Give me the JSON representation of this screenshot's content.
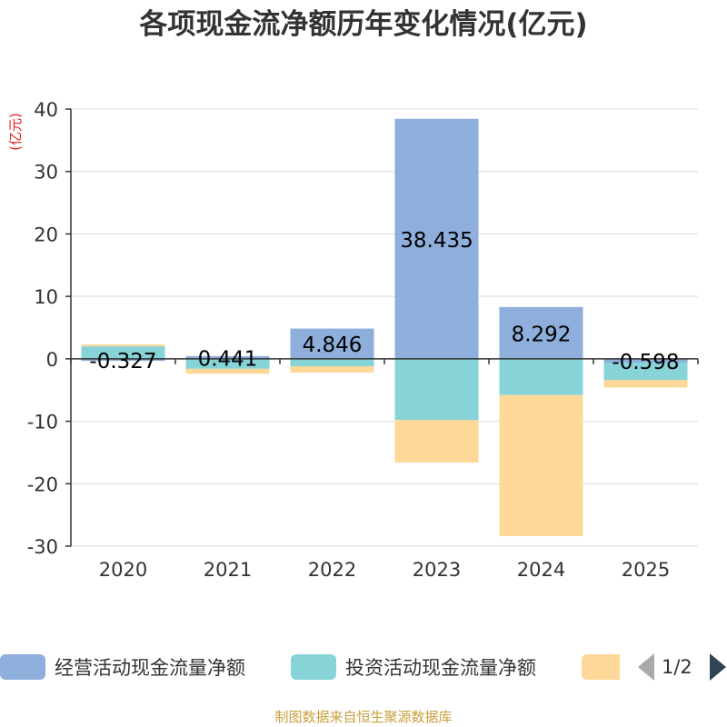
{
  "title": "各项现金流净额历年变化情况(亿元)",
  "source": "制图数据来自恒生聚源数据库",
  "colors": {
    "operating": "#8eaedb",
    "investing": "#86d4d8",
    "financing": "#fed898",
    "grid": "#d9d9d9",
    "axis": "#333333",
    "unit": "#dd2222"
  },
  "legend": {
    "items": [
      "经营活动现金流量净额",
      "投资活动现金流量净额",
      ""
    ],
    "pager": "1/2"
  },
  "chart_data": {
    "type": "bar",
    "stacked": true,
    "title": "各项现金流净额历年变化情况(亿元)",
    "ylabel": "(亿元)",
    "ylim": [
      -30,
      40
    ],
    "yticks": [
      "40",
      "30",
      "20",
      "10",
      "0",
      "-10",
      "-20",
      "-30"
    ],
    "categories": [
      "2020",
      "2021",
      "2022",
      "2023",
      "2024",
      "2025"
    ],
    "series": [
      {
        "name": "经营活动现金流量净额",
        "values": [
          -0.327,
          0.441,
          4.846,
          38.435,
          8.292,
          -0.598
        ],
        "labels": [
          "-0.327",
          "0.441",
          "4.846",
          "38.435",
          "8.292",
          "-0.598"
        ]
      },
      {
        "name": "投资活动现金流量净额",
        "values": [
          2.0,
          -1.6,
          -1.2,
          -9.8,
          -5.8,
          -2.8
        ]
      },
      {
        "name": "",
        "values": [
          0.3,
          -0.8,
          -1.0,
          -6.8,
          -22.6,
          -1.2
        ]
      }
    ]
  }
}
